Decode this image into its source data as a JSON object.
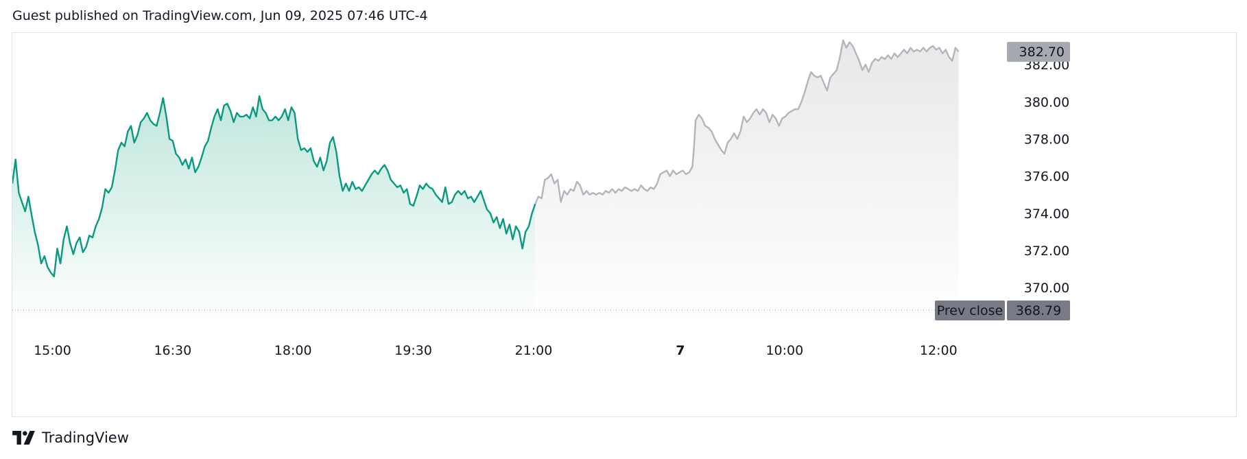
{
  "header": {
    "text": "Guest published on TradingView.com, Jun 09, 2025 07:46 UTC-4"
  },
  "footer": {
    "brand": "TradingView",
    "logo_icon": "tradingview-logo-icon"
  },
  "colors": {
    "regular_line": "#089981",
    "regular_fill_top": "#bfe6dc",
    "extended_line": "#b2b5be",
    "extended_fill_top": "#e8e8e8",
    "last_price_badge": "#a6a9b0",
    "prev_close_badge": "#787b86",
    "prev_close_line": "#9598a1"
  },
  "chart_data": {
    "type": "area",
    "title": "",
    "xlabel": "",
    "ylabel": "",
    "ylim": [
      368.2,
      383.7
    ],
    "x_ticks": [
      {
        "label": "15:00",
        "t": 0.5,
        "bold": false
      },
      {
        "label": "16:30",
        "t": 2.0,
        "bold": false
      },
      {
        "label": "18:00",
        "t": 3.5,
        "bold": false
      },
      {
        "label": "19:30",
        "t": 5.0,
        "bold": false
      },
      {
        "label": "21:00",
        "t": 6.5,
        "bold": false
      },
      {
        "label": "7",
        "t": 8.33,
        "bold": true
      },
      {
        "label": "10:00",
        "t": 9.63,
        "bold": false
      },
      {
        "label": "12:00",
        "t": 11.55,
        "bold": false
      }
    ],
    "y_ticks": [
      "382.00",
      "380.00",
      "378.00",
      "376.00",
      "374.00",
      "372.00",
      "370.00"
    ],
    "last_price": {
      "label": "382.70",
      "value": 382.7
    },
    "prev_close": {
      "label": "Prev close",
      "value_label": "368.79",
      "value": 368.79
    },
    "t_range": [
      0,
      12.3
    ],
    "series": [
      {
        "session": "regular",
        "points": [
          [
            0.0,
            375.6
          ],
          [
            0.04,
            376.9
          ],
          [
            0.08,
            375.1
          ],
          [
            0.12,
            374.6
          ],
          [
            0.16,
            374.1
          ],
          [
            0.2,
            374.9
          ],
          [
            0.24,
            373.9
          ],
          [
            0.28,
            373.0
          ],
          [
            0.32,
            372.3
          ],
          [
            0.36,
            371.3
          ],
          [
            0.4,
            371.7
          ],
          [
            0.44,
            371.1
          ],
          [
            0.48,
            370.8
          ],
          [
            0.52,
            370.6
          ],
          [
            0.56,
            372.1
          ],
          [
            0.6,
            371.3
          ],
          [
            0.64,
            372.6
          ],
          [
            0.68,
            373.3
          ],
          [
            0.72,
            372.4
          ],
          [
            0.76,
            371.8
          ],
          [
            0.8,
            372.4
          ],
          [
            0.84,
            372.7
          ],
          [
            0.88,
            371.9
          ],
          [
            0.92,
            372.2
          ],
          [
            0.96,
            372.8
          ],
          [
            1.0,
            372.7
          ],
          [
            1.04,
            373.3
          ],
          [
            1.08,
            373.7
          ],
          [
            1.12,
            374.3
          ],
          [
            1.16,
            375.3
          ],
          [
            1.2,
            375.1
          ],
          [
            1.24,
            375.4
          ],
          [
            1.28,
            376.3
          ],
          [
            1.32,
            377.4
          ],
          [
            1.36,
            377.8
          ],
          [
            1.4,
            377.6
          ],
          [
            1.44,
            378.4
          ],
          [
            1.48,
            378.7
          ],
          [
            1.52,
            377.8
          ],
          [
            1.56,
            378.2
          ],
          [
            1.6,
            378.9
          ],
          [
            1.64,
            379.1
          ],
          [
            1.68,
            379.4
          ],
          [
            1.72,
            379.0
          ],
          [
            1.76,
            378.8
          ],
          [
            1.8,
            378.7
          ],
          [
            1.84,
            379.4
          ],
          [
            1.88,
            380.2
          ],
          [
            1.92,
            379.2
          ],
          [
            1.96,
            378.0
          ],
          [
            2.0,
            377.9
          ],
          [
            2.04,
            377.2
          ],
          [
            2.08,
            377.0
          ],
          [
            2.12,
            376.6
          ],
          [
            2.16,
            376.9
          ],
          [
            2.2,
            376.4
          ],
          [
            2.24,
            377.0
          ],
          [
            2.28,
            376.2
          ],
          [
            2.32,
            376.5
          ],
          [
            2.36,
            377.0
          ],
          [
            2.4,
            377.6
          ],
          [
            2.44,
            377.9
          ],
          [
            2.48,
            378.6
          ],
          [
            2.52,
            379.2
          ],
          [
            2.56,
            379.6
          ],
          [
            2.6,
            379.0
          ],
          [
            2.64,
            379.8
          ],
          [
            2.68,
            379.9
          ],
          [
            2.72,
            379.5
          ],
          [
            2.76,
            378.9
          ],
          [
            2.8,
            379.4
          ],
          [
            2.84,
            379.2
          ],
          [
            2.88,
            379.2
          ],
          [
            2.92,
            379.3
          ],
          [
            2.96,
            379.1
          ],
          [
            3.0,
            379.7
          ],
          [
            3.04,
            379.2
          ],
          [
            3.08,
            380.3
          ],
          [
            3.12,
            379.6
          ],
          [
            3.16,
            379.4
          ],
          [
            3.2,
            379.0
          ],
          [
            3.24,
            379.0
          ],
          [
            3.28,
            379.2
          ],
          [
            3.32,
            379.0
          ],
          [
            3.36,
            379.2
          ],
          [
            3.4,
            379.6
          ],
          [
            3.44,
            379.0
          ],
          [
            3.48,
            379.7
          ],
          [
            3.52,
            379.4
          ],
          [
            3.56,
            378.0
          ],
          [
            3.6,
            377.4
          ],
          [
            3.64,
            377.5
          ],
          [
            3.68,
            377.3
          ],
          [
            3.72,
            377.5
          ],
          [
            3.76,
            376.8
          ],
          [
            3.8,
            376.5
          ],
          [
            3.84,
            377.0
          ],
          [
            3.88,
            376.3
          ],
          [
            3.92,
            376.8
          ],
          [
            3.96,
            377.8
          ],
          [
            4.0,
            378.1
          ],
          [
            4.04,
            377.3
          ],
          [
            4.08,
            376.0
          ],
          [
            4.12,
            375.2
          ],
          [
            4.16,
            375.6
          ],
          [
            4.2,
            375.2
          ],
          [
            4.24,
            375.7
          ],
          [
            4.28,
            375.3
          ],
          [
            4.32,
            375.4
          ],
          [
            4.36,
            375.2
          ],
          [
            4.4,
            375.5
          ],
          [
            4.44,
            375.8
          ],
          [
            4.48,
            376.1
          ],
          [
            4.52,
            376.3
          ],
          [
            4.56,
            376.1
          ],
          [
            4.6,
            376.4
          ],
          [
            4.64,
            376.6
          ],
          [
            4.68,
            376.3
          ],
          [
            4.72,
            375.8
          ],
          [
            4.76,
            375.6
          ],
          [
            4.8,
            375.4
          ],
          [
            4.84,
            375.5
          ],
          [
            4.88,
            375.1
          ],
          [
            4.92,
            375.3
          ],
          [
            4.96,
            374.5
          ],
          [
            5.0,
            374.4
          ],
          [
            5.04,
            374.9
          ],
          [
            5.08,
            375.5
          ],
          [
            5.12,
            375.3
          ],
          [
            5.16,
            375.6
          ],
          [
            5.2,
            375.4
          ],
          [
            5.24,
            375.3
          ],
          [
            5.28,
            375.0
          ],
          [
            5.32,
            374.8
          ],
          [
            5.36,
            374.6
          ],
          [
            5.4,
            375.4
          ],
          [
            5.44,
            374.5
          ],
          [
            5.48,
            374.6
          ],
          [
            5.52,
            375.0
          ],
          [
            5.56,
            375.2
          ],
          [
            5.6,
            375.0
          ],
          [
            5.64,
            375.2
          ],
          [
            5.68,
            374.8
          ],
          [
            5.72,
            374.9
          ],
          [
            5.76,
            374.6
          ],
          [
            5.8,
            374.9
          ],
          [
            5.84,
            375.2
          ],
          [
            5.88,
            374.7
          ],
          [
            5.92,
            374.2
          ],
          [
            5.96,
            374.0
          ],
          [
            6.0,
            373.5
          ],
          [
            6.04,
            373.8
          ],
          [
            6.08,
            373.2
          ],
          [
            6.12,
            373.7
          ],
          [
            6.16,
            372.9
          ],
          [
            6.2,
            373.4
          ],
          [
            6.24,
            372.6
          ],
          [
            6.28,
            373.3
          ],
          [
            6.32,
            373.0
          ],
          [
            6.36,
            372.1
          ],
          [
            6.4,
            373.0
          ],
          [
            6.44,
            373.3
          ],
          [
            6.48,
            374.0
          ],
          [
            6.52,
            374.5
          ]
        ]
      },
      {
        "session": "extended",
        "points": [
          [
            6.52,
            374.5
          ],
          [
            6.56,
            374.9
          ],
          [
            6.6,
            374.8
          ],
          [
            6.64,
            375.8
          ],
          [
            6.68,
            375.9
          ],
          [
            6.72,
            376.1
          ],
          [
            6.76,
            375.6
          ],
          [
            6.8,
            375.8
          ],
          [
            6.84,
            374.6
          ],
          [
            6.88,
            375.2
          ],
          [
            6.92,
            375.0
          ],
          [
            6.96,
            375.3
          ],
          [
            7.0,
            375.2
          ],
          [
            7.04,
            375.7
          ],
          [
            7.08,
            375.5
          ],
          [
            7.12,
            375.0
          ],
          [
            7.16,
            375.2
          ],
          [
            7.2,
            375.0
          ],
          [
            7.24,
            375.1
          ],
          [
            7.28,
            375.0
          ],
          [
            7.32,
            375.1
          ],
          [
            7.36,
            375.0
          ],
          [
            7.4,
            375.2
          ],
          [
            7.44,
            375.1
          ],
          [
            7.48,
            375.3
          ],
          [
            7.52,
            375.1
          ],
          [
            7.56,
            375.3
          ],
          [
            7.6,
            375.2
          ],
          [
            7.64,
            375.4
          ],
          [
            7.68,
            375.3
          ],
          [
            7.72,
            375.2
          ],
          [
            7.76,
            375.3
          ],
          [
            7.8,
            375.2
          ],
          [
            7.84,
            375.5
          ],
          [
            7.88,
            375.3
          ],
          [
            7.92,
            375.2
          ],
          [
            7.96,
            375.4
          ],
          [
            8.0,
            375.3
          ],
          [
            8.04,
            375.6
          ],
          [
            8.08,
            376.1
          ],
          [
            8.12,
            376.2
          ],
          [
            8.16,
            376.3
          ],
          [
            8.2,
            376.0
          ],
          [
            8.24,
            376.3
          ],
          [
            8.28,
            376.1
          ],
          [
            8.32,
            376.2
          ],
          [
            8.36,
            376.3
          ],
          [
            8.4,
            376.1
          ],
          [
            8.44,
            376.2
          ],
          [
            8.48,
            376.5
          ],
          [
            8.5,
            377.5
          ],
          [
            8.52,
            379.0
          ],
          [
            8.56,
            379.3
          ],
          [
            8.6,
            379.1
          ],
          [
            8.64,
            378.7
          ],
          [
            8.68,
            378.6
          ],
          [
            8.72,
            378.4
          ],
          [
            8.76,
            378.0
          ],
          [
            8.8,
            377.7
          ],
          [
            8.84,
            377.4
          ],
          [
            8.88,
            377.2
          ],
          [
            8.92,
            377.8
          ],
          [
            8.96,
            378.0
          ],
          [
            9.0,
            378.3
          ],
          [
            9.04,
            378.0
          ],
          [
            9.08,
            378.4
          ],
          [
            9.12,
            379.2
          ],
          [
            9.16,
            378.9
          ],
          [
            9.2,
            379.1
          ],
          [
            9.24,
            379.4
          ],
          [
            9.28,
            379.6
          ],
          [
            9.32,
            379.3
          ],
          [
            9.36,
            379.6
          ],
          [
            9.4,
            379.4
          ],
          [
            9.44,
            378.9
          ],
          [
            9.48,
            379.3
          ],
          [
            9.52,
            379.1
          ],
          [
            9.56,
            378.7
          ],
          [
            9.6,
            379.1
          ],
          [
            9.64,
            379.2
          ],
          [
            9.68,
            379.4
          ],
          [
            9.72,
            379.5
          ],
          [
            9.76,
            379.6
          ],
          [
            9.8,
            379.6
          ],
          [
            9.84,
            380.0
          ],
          [
            9.88,
            380.5
          ],
          [
            9.92,
            381.1
          ],
          [
            9.96,
            381.6
          ],
          [
            10.0,
            381.4
          ],
          [
            10.04,
            381.3
          ],
          [
            10.08,
            381.4
          ],
          [
            10.12,
            381.0
          ],
          [
            10.16,
            380.6
          ],
          [
            10.2,
            381.3
          ],
          [
            10.24,
            381.5
          ],
          [
            10.28,
            381.7
          ],
          [
            10.32,
            382.4
          ],
          [
            10.36,
            383.3
          ],
          [
            10.4,
            382.9
          ],
          [
            10.44,
            383.2
          ],
          [
            10.48,
            383.0
          ],
          [
            10.52,
            382.6
          ],
          [
            10.56,
            382.2
          ],
          [
            10.6,
            381.7
          ],
          [
            10.64,
            382.0
          ],
          [
            10.68,
            381.6
          ],
          [
            10.72,
            382.1
          ],
          [
            10.76,
            382.3
          ],
          [
            10.8,
            382.2
          ],
          [
            10.84,
            382.4
          ],
          [
            10.88,
            382.3
          ],
          [
            10.92,
            382.5
          ],
          [
            10.96,
            382.3
          ],
          [
            11.0,
            382.6
          ],
          [
            11.04,
            382.4
          ],
          [
            11.08,
            382.6
          ],
          [
            11.12,
            382.8
          ],
          [
            11.16,
            382.6
          ],
          [
            11.2,
            382.9
          ],
          [
            11.24,
            382.7
          ],
          [
            11.28,
            382.8
          ],
          [
            11.32,
            382.7
          ],
          [
            11.36,
            382.9
          ],
          [
            11.4,
            382.7
          ],
          [
            11.44,
            382.9
          ],
          [
            11.48,
            383.0
          ],
          [
            11.52,
            382.8
          ],
          [
            11.56,
            382.9
          ],
          [
            11.6,
            382.6
          ],
          [
            11.64,
            382.8
          ],
          [
            11.68,
            382.4
          ],
          [
            11.72,
            382.2
          ],
          [
            11.76,
            382.9
          ],
          [
            11.8,
            382.7
          ]
        ]
      }
    ]
  }
}
